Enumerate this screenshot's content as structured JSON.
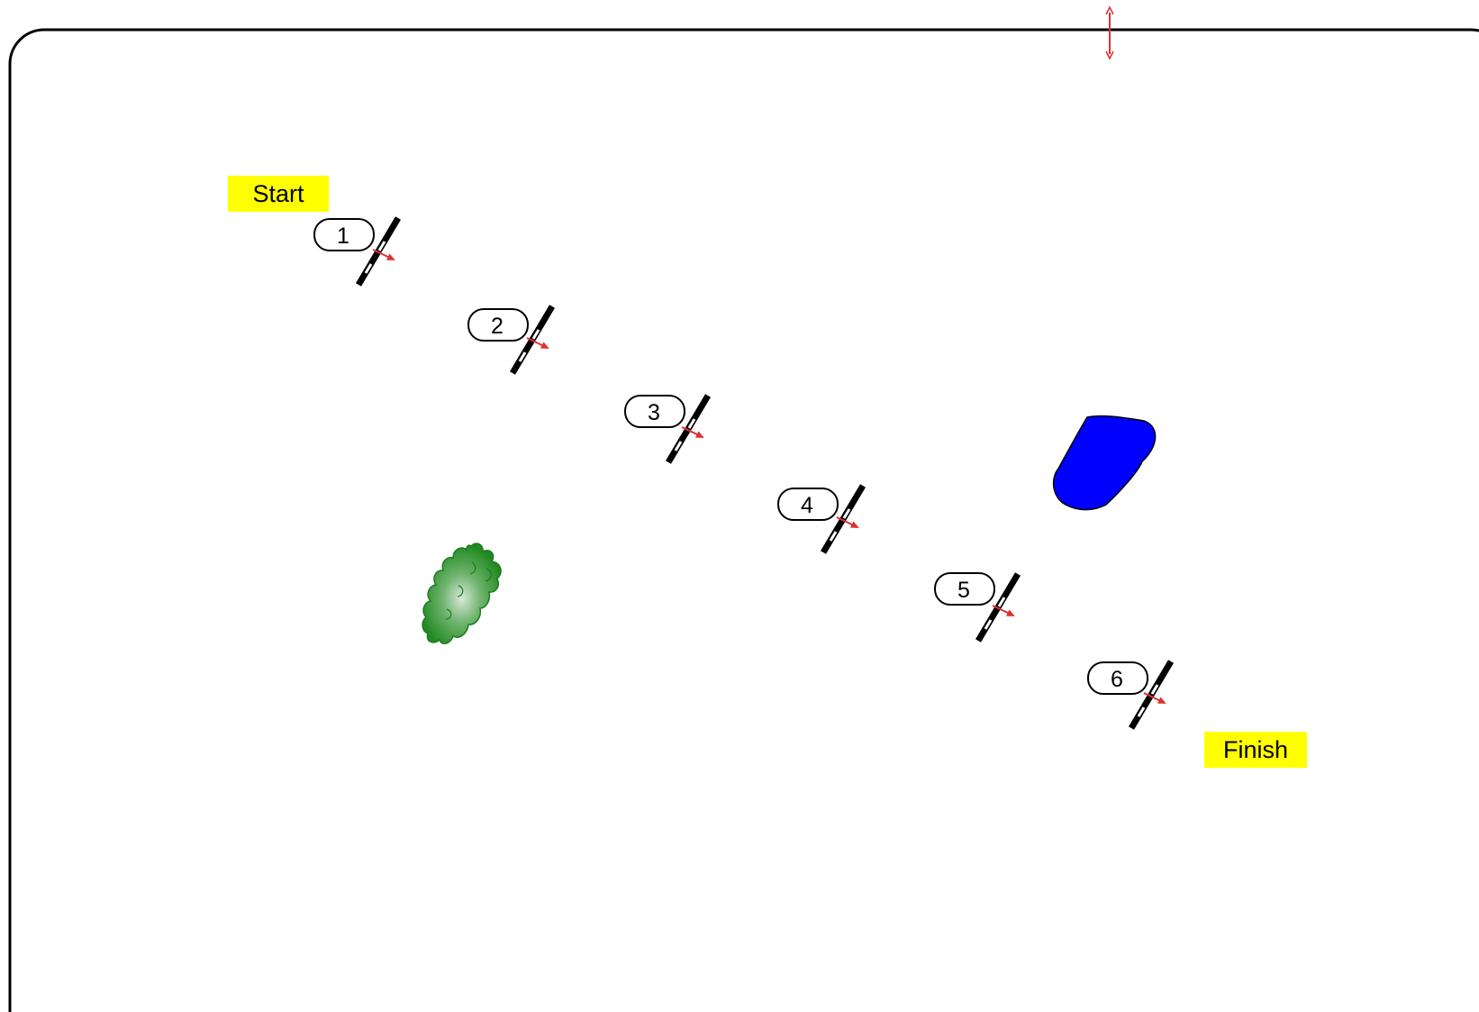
{
  "diagram": {
    "start_label": "Start",
    "finish_label": "Finish",
    "gates": [
      {
        "number": "1"
      },
      {
        "number": "2"
      },
      {
        "number": "3"
      },
      {
        "number": "4"
      },
      {
        "number": "5"
      },
      {
        "number": "6"
      }
    ],
    "colors": {
      "label_background": "#ffff00",
      "arrow": "#e03030",
      "water": "#0000ff",
      "bush": "#2e8b2e",
      "frame": "#000000"
    },
    "icons": {
      "water": "pond-icon",
      "bush": "bush-icon",
      "handle": "resize-handle-icon"
    }
  }
}
